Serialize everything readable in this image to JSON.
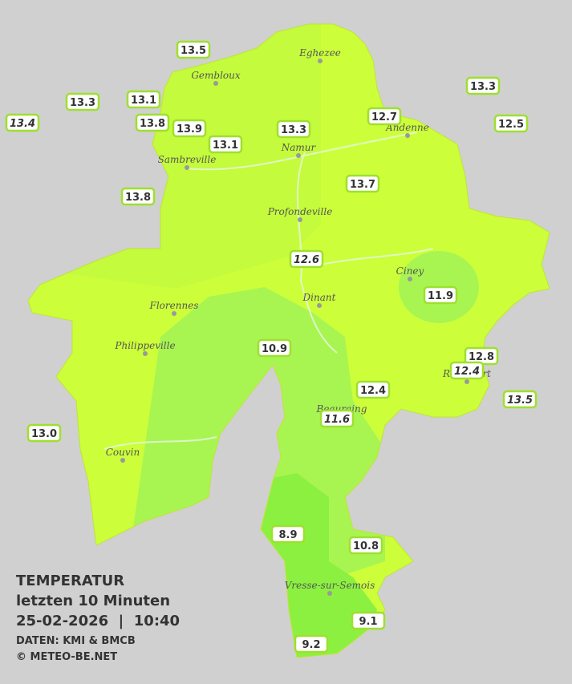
{
  "title": [
    "TEMPERATUR",
    "letzten 10 Minuten",
    "25-02-2026  |  10:40"
  ],
  "credits": [
    "DATEN: KMI & BMCB",
    "© METEO-BE.NET"
  ],
  "cities": [
    {
      "name": "Eghezee"
    },
    {
      "name": "Gembloux"
    },
    {
      "name": "Andenne"
    },
    {
      "name": "Namur"
    },
    {
      "name": "Sambreville"
    },
    {
      "name": "Profondeville"
    },
    {
      "name": "Ciney"
    },
    {
      "name": "Dinant"
    },
    {
      "name": "Florennes"
    },
    {
      "name": "Philippeville"
    },
    {
      "name": "Beauraing"
    },
    {
      "name": "Rochefort"
    },
    {
      "name": "Couvin"
    },
    {
      "name": "Vresse-sur-Semois"
    }
  ],
  "stations": [
    {
      "label": "13.5"
    },
    {
      "label": "13.3"
    },
    {
      "label": "13.1"
    },
    {
      "label": "13.4",
      "italic": true
    },
    {
      "label": "13.8"
    },
    {
      "label": "13.9"
    },
    {
      "label": "13.1"
    },
    {
      "label": "13.3"
    },
    {
      "label": "12.7"
    },
    {
      "label": "13.3"
    },
    {
      "label": "12.5"
    },
    {
      "label": "13.8"
    },
    {
      "label": "13.7"
    },
    {
      "label": "12.6",
      "italic": true
    },
    {
      "label": "11.9"
    },
    {
      "label": "10.9"
    },
    {
      "label": "12.8"
    },
    {
      "label": "12.4",
      "italic": true
    },
    {
      "label": "12.4"
    },
    {
      "label": "13.5",
      "italic": true
    },
    {
      "label": "11.6",
      "italic": true
    },
    {
      "label": "13.0"
    },
    {
      "label": "8.9"
    },
    {
      "label": "10.8"
    },
    {
      "label": "9.1"
    },
    {
      "label": "9.2"
    }
  ]
}
